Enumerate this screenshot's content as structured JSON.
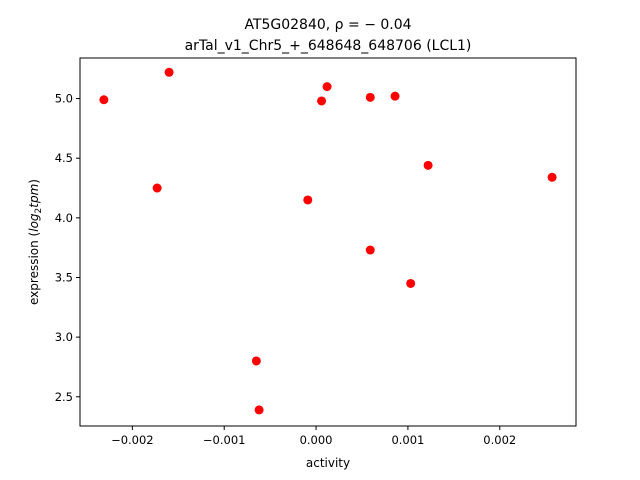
{
  "chart_data": {
    "type": "scatter",
    "title_line1": "AT5G02840, ρ = − 0.04",
    "title_line2": "arTal_v1_Chr5_+_648648_648706 (LCL1)",
    "xlabel": "activity",
    "ylabel_prefix": "expression (",
    "ylabel_math": "log",
    "ylabel_sub": "2",
    "ylabel_math2": "tpm",
    "ylabel_suffix": ")",
    "xlim": [
      -0.00257,
      0.00283
    ],
    "ylim": [
      2.255,
      5.34
    ],
    "x_ticks": [
      {
        "value": -0.002,
        "label": "−0.002"
      },
      {
        "value": -0.001,
        "label": "−0.001"
      },
      {
        "value": 0.0,
        "label": "0.000"
      },
      {
        "value": 0.001,
        "label": "0.001"
      },
      {
        "value": 0.002,
        "label": "0.002"
      }
    ],
    "y_ticks": [
      {
        "value": 2.5,
        "label": "2.5"
      },
      {
        "value": 3.0,
        "label": "3.0"
      },
      {
        "value": 3.5,
        "label": "3.5"
      },
      {
        "value": 4.0,
        "label": "4.0"
      },
      {
        "value": 4.5,
        "label": "4.5"
      },
      {
        "value": 5.0,
        "label": "5.0"
      }
    ],
    "marker_color": "#ff0000",
    "grid": false,
    "points": [
      {
        "x": -0.00231,
        "y": 4.99
      },
      {
        "x": -0.0016,
        "y": 5.22
      },
      {
        "x": -0.00173,
        "y": 4.25
      },
      {
        "x": -0.00065,
        "y": 2.8
      },
      {
        "x": -0.00062,
        "y": 2.39
      },
      {
        "x": -9e-05,
        "y": 4.15
      },
      {
        "x": 6e-05,
        "y": 4.98
      },
      {
        "x": 0.00012,
        "y": 5.1
      },
      {
        "x": 0.00059,
        "y": 5.01
      },
      {
        "x": 0.00059,
        "y": 3.73
      },
      {
        "x": 0.00086,
        "y": 5.02
      },
      {
        "x": 0.00103,
        "y": 3.45
      },
      {
        "x": 0.00122,
        "y": 4.44
      },
      {
        "x": 0.00257,
        "y": 4.34
      }
    ]
  }
}
